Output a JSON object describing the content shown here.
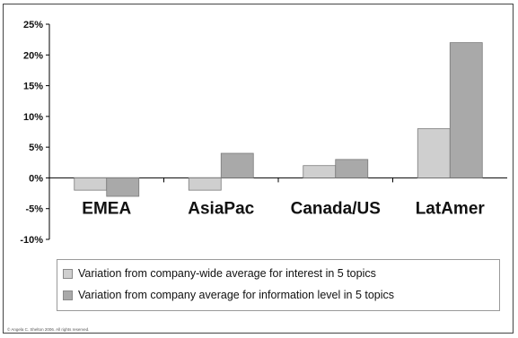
{
  "chart_data": {
    "type": "bar",
    "categories": [
      "EMEA",
      "AsiaPac",
      "Canada/US",
      "LatAmer"
    ],
    "series": [
      {
        "name": "Variation from company-wide average for interest in 5 topics",
        "values": [
          -2,
          -2,
          2,
          8
        ],
        "color": "#cfcfcf"
      },
      {
        "name": "Variation from company average for information level in 5 topics",
        "values": [
          -3,
          4,
          3,
          22
        ],
        "color": "#a9a9a9"
      }
    ],
    "ylim": [
      -10,
      25
    ],
    "yticks": [
      "-10%",
      "-5%",
      "0%",
      "5%",
      "10%",
      "15%",
      "20%",
      "25%"
    ],
    "grid": false,
    "legend_placement": "bottom"
  },
  "footer": {
    "copyright": "© Angela C. Shelton 2006. All rights reserved."
  }
}
